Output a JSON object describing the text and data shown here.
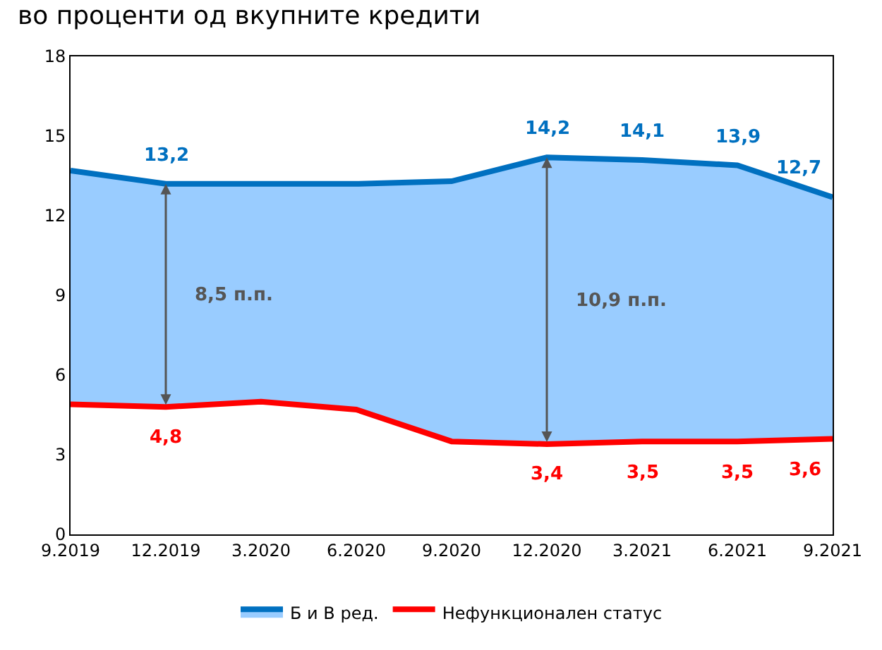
{
  "chart_data": {
    "type": "area",
    "title": "во проценти од вкупните кредити",
    "categories": [
      "9.2019",
      "12.2019",
      "3.2020",
      "6.2020",
      "9.2020",
      "12.2020",
      "3.2021",
      "6.2021",
      "9.2021"
    ],
    "series": [
      {
        "name": "Б и В ред.",
        "color": "#0070c0",
        "values": [
          13.7,
          13.2,
          13.2,
          13.2,
          13.3,
          14.2,
          14.1,
          13.9,
          12.7
        ],
        "value_labels": [
          null,
          "13,2",
          null,
          null,
          null,
          "14,2",
          "14,1",
          "13,9",
          "12,7"
        ]
      },
      {
        "name": "Нефункционален статус",
        "color": "#ff0000",
        "values": [
          4.9,
          4.8,
          5.0,
          4.7,
          3.5,
          3.4,
          3.5,
          3.5,
          3.6
        ],
        "value_labels": [
          null,
          "4,8",
          null,
          null,
          null,
          "3,4",
          "3,5",
          "3,5",
          "3,6"
        ]
      }
    ],
    "ylim": [
      0,
      18
    ],
    "yticks": [
      0,
      3,
      6,
      9,
      12,
      15,
      18
    ],
    "legend": "bottom",
    "annotations": [
      "8,5 п.п.",
      "10,9 п.п."
    ]
  }
}
